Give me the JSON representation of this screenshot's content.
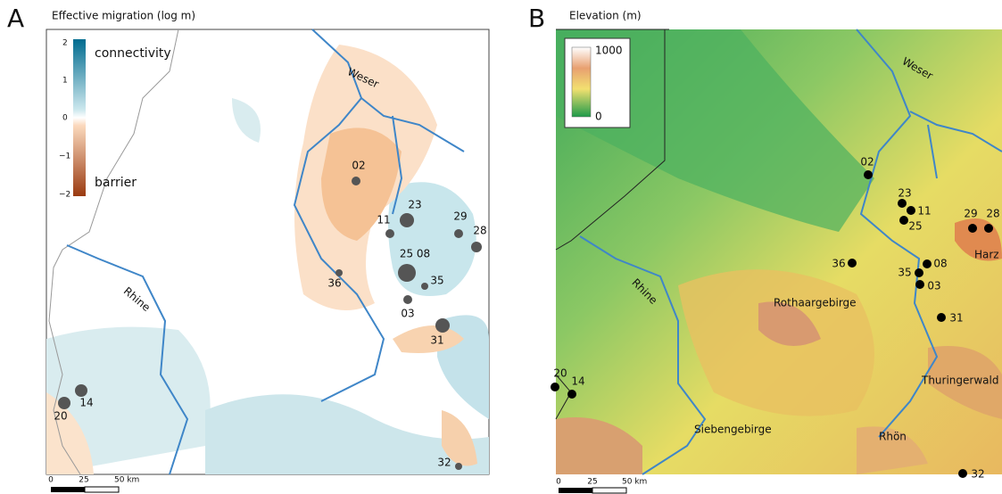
{
  "panels": [
    {
      "letter": "A",
      "title": "Effective migration (log m)",
      "legend": {
        "ticks": [
          "2",
          "1",
          "0",
          "−1",
          "−2"
        ],
        "labels": [
          "connectivity",
          "barrier"
        ]
      },
      "rivers": [
        "Weser",
        "Rhine"
      ],
      "sites": [
        "02",
        "23",
        "11",
        "29",
        "28",
        "25 08",
        "36",
        "35",
        "03",
        "31",
        "20",
        "14",
        "32"
      ],
      "scale": [
        "0",
        "25",
        "50 km"
      ]
    },
    {
      "letter": "B",
      "title": "Elevation (m)",
      "legend": {
        "ticks": [
          "1000",
          "0"
        ]
      },
      "rivers": [
        "Weser",
        "Rhine"
      ],
      "places": [
        "Rothaargebirge",
        "Siebengebirge",
        "Harz",
        "Thuringerwald",
        "Rhön"
      ],
      "sites": [
        "02",
        "23",
        "11",
        "25",
        "29",
        "28",
        "36",
        "08",
        "35",
        "03",
        "31",
        "20",
        "14",
        "32"
      ],
      "scale": [
        "0",
        "25",
        "50 km"
      ]
    }
  ]
}
